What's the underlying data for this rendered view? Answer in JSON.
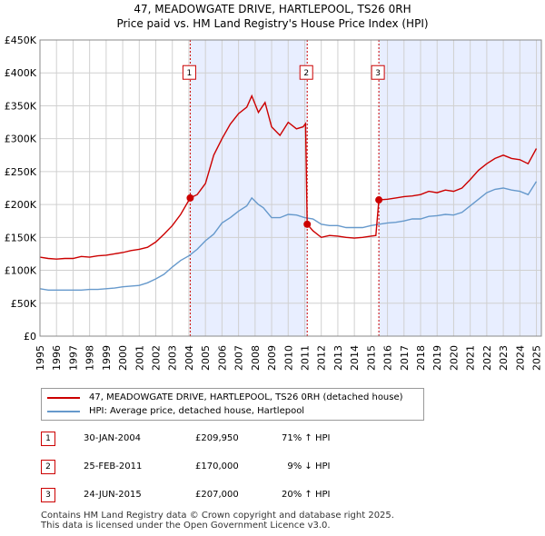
{
  "title_line1": "47, MEADOWGATE DRIVE, HARTLEPOOL, TS26 0RH",
  "title_line2": "Price paid vs. HM Land Registry's House Price Index (HPI)",
  "chart_data": {
    "type": "line",
    "title": "47, MEADOWGATE DRIVE, HARTLEPOOL, TS26 0RH — Price paid vs. HM Land Registry's House Price Index (HPI)",
    "xlim": [
      1995,
      2025.3
    ],
    "ylim": [
      0,
      450000
    ],
    "x_ticks": [
      1995,
      1996,
      1997,
      1998,
      1999,
      2000,
      2001,
      2002,
      2003,
      2004,
      2005,
      2006,
      2007,
      2008,
      2009,
      2010,
      2011,
      2012,
      2013,
      2014,
      2015,
      2016,
      2017,
      2018,
      2019,
      2020,
      2021,
      2022,
      2023,
      2024,
      2025
    ],
    "y_ticks": [
      0,
      50000,
      100000,
      150000,
      200000,
      250000,
      300000,
      350000,
      400000,
      450000
    ],
    "y_tick_labels": [
      "£0",
      "£50K",
      "£100K",
      "£150K",
      "£200K",
      "£250K",
      "£300K",
      "£350K",
      "£400K",
      "£450K"
    ],
    "colors": {
      "property": "#cc0000",
      "hpi": "#6699cc",
      "shade": "#e8eeff",
      "grid": "#d0d0d0"
    },
    "shaded_ranges": [
      [
        2004.08,
        2011.15
      ],
      [
        2015.48,
        2025.3
      ]
    ],
    "series": [
      {
        "name": "47, MEADOWGATE DRIVE, HARTLEPOOL, TS26 0RH (detached house)",
        "color": "#cc0000",
        "points": [
          [
            1995.0,
            120000
          ],
          [
            1995.5,
            118000
          ],
          [
            1996.0,
            117000
          ],
          [
            1996.5,
            118000
          ],
          [
            1997.0,
            118000
          ],
          [
            1997.5,
            121000
          ],
          [
            1998.0,
            120000
          ],
          [
            1998.5,
            122000
          ],
          [
            1999.0,
            123000
          ],
          [
            1999.5,
            125000
          ],
          [
            2000.0,
            127000
          ],
          [
            2000.5,
            130000
          ],
          [
            2001.0,
            132000
          ],
          [
            2001.5,
            135000
          ],
          [
            2002.0,
            143000
          ],
          [
            2002.5,
            155000
          ],
          [
            2003.0,
            168000
          ],
          [
            2003.5,
            185000
          ],
          [
            2004.08,
            209950
          ],
          [
            2004.5,
            215000
          ],
          [
            2005.0,
            232000
          ],
          [
            2005.5,
            275000
          ],
          [
            2006.0,
            300000
          ],
          [
            2006.5,
            322000
          ],
          [
            2007.0,
            338000
          ],
          [
            2007.5,
            348000
          ],
          [
            2007.8,
            365000
          ],
          [
            2008.2,
            340000
          ],
          [
            2008.6,
            355000
          ],
          [
            2009.0,
            318000
          ],
          [
            2009.5,
            305000
          ],
          [
            2010.0,
            325000
          ],
          [
            2010.5,
            315000
          ],
          [
            2010.9,
            318000
          ],
          [
            2011.05,
            323000
          ],
          [
            2011.15,
            170000
          ],
          [
            2011.5,
            160000
          ],
          [
            2012.0,
            150000
          ],
          [
            2012.5,
            153000
          ],
          [
            2013.0,
            152000
          ],
          [
            2013.5,
            150000
          ],
          [
            2014.0,
            149000
          ],
          [
            2014.5,
            150000
          ],
          [
            2015.0,
            152000
          ],
          [
            2015.3,
            153000
          ],
          [
            2015.48,
            207000
          ],
          [
            2016.0,
            208000
          ],
          [
            2016.5,
            210000
          ],
          [
            2017.0,
            212000
          ],
          [
            2017.5,
            213000
          ],
          [
            2018.0,
            215000
          ],
          [
            2018.5,
            220000
          ],
          [
            2019.0,
            218000
          ],
          [
            2019.5,
            222000
          ],
          [
            2020.0,
            220000
          ],
          [
            2020.5,
            225000
          ],
          [
            2021.0,
            238000
          ],
          [
            2021.5,
            252000
          ],
          [
            2022.0,
            262000
          ],
          [
            2022.5,
            270000
          ],
          [
            2023.0,
            275000
          ],
          [
            2023.5,
            270000
          ],
          [
            2024.0,
            268000
          ],
          [
            2024.5,
            262000
          ],
          [
            2025.0,
            285000
          ]
        ]
      },
      {
        "name": "HPI: Average price, detached house, Hartlepool",
        "color": "#6699cc",
        "points": [
          [
            1995.0,
            72000
          ],
          [
            1995.5,
            70000
          ],
          [
            1996.0,
            70000
          ],
          [
            1996.5,
            70000
          ],
          [
            1997.0,
            70000
          ],
          [
            1997.5,
            70000
          ],
          [
            1998.0,
            71000
          ],
          [
            1998.5,
            71000
          ],
          [
            1999.0,
            72000
          ],
          [
            1999.5,
            73000
          ],
          [
            2000.0,
            75000
          ],
          [
            2000.5,
            76000
          ],
          [
            2001.0,
            77000
          ],
          [
            2001.5,
            81000
          ],
          [
            2002.0,
            87000
          ],
          [
            2002.5,
            94000
          ],
          [
            2003.0,
            105000
          ],
          [
            2003.5,
            115000
          ],
          [
            2004.0,
            122000
          ],
          [
            2004.5,
            132000
          ],
          [
            2005.0,
            145000
          ],
          [
            2005.5,
            155000
          ],
          [
            2006.0,
            172000
          ],
          [
            2006.5,
            180000
          ],
          [
            2007.0,
            190000
          ],
          [
            2007.5,
            198000
          ],
          [
            2007.8,
            210000
          ],
          [
            2008.2,
            200000
          ],
          [
            2008.5,
            195000
          ],
          [
            2009.0,
            180000
          ],
          [
            2009.5,
            180000
          ],
          [
            2010.0,
            185000
          ],
          [
            2010.5,
            184000
          ],
          [
            2011.0,
            180000
          ],
          [
            2011.5,
            178000
          ],
          [
            2012.0,
            170000
          ],
          [
            2012.5,
            168000
          ],
          [
            2013.0,
            168000
          ],
          [
            2013.5,
            165000
          ],
          [
            2014.0,
            165000
          ],
          [
            2014.5,
            165000
          ],
          [
            2015.0,
            168000
          ],
          [
            2015.5,
            170000
          ],
          [
            2016.0,
            172000
          ],
          [
            2016.5,
            173000
          ],
          [
            2017.0,
            175000
          ],
          [
            2017.5,
            178000
          ],
          [
            2018.0,
            178000
          ],
          [
            2018.5,
            182000
          ],
          [
            2019.0,
            183000
          ],
          [
            2019.5,
            185000
          ],
          [
            2020.0,
            184000
          ],
          [
            2020.5,
            188000
          ],
          [
            2021.0,
            198000
          ],
          [
            2021.5,
            208000
          ],
          [
            2022.0,
            218000
          ],
          [
            2022.5,
            223000
          ],
          [
            2023.0,
            225000
          ],
          [
            2023.5,
            222000
          ],
          [
            2024.0,
            220000
          ],
          [
            2024.5,
            215000
          ],
          [
            2025.0,
            235000
          ]
        ]
      }
    ],
    "sales": [
      {
        "marker": "1",
        "x": 2004.08,
        "price": 209950
      },
      {
        "marker": "2",
        "x": 2011.15,
        "price": 170000
      },
      {
        "marker": "3",
        "x": 2015.48,
        "price": 207000
      }
    ]
  },
  "legend": {
    "property_label": "47, MEADOWGATE DRIVE, HARTLEPOOL, TS26 0RH (detached house)",
    "hpi_label": "HPI: Average price, detached house, Hartlepool"
  },
  "sales_table": [
    {
      "num": "1",
      "date": "30-JAN-2004",
      "price": "£209,950",
      "hpi": "71% ↑ HPI"
    },
    {
      "num": "2",
      "date": "25-FEB-2011",
      "price": "£170,000",
      "hpi": "  9% ↓ HPI"
    },
    {
      "num": "3",
      "date": "24-JUN-2015",
      "price": "£207,000",
      "hpi": "20% ↑ HPI"
    }
  ],
  "footer": {
    "line1": "Contains HM Land Registry data © Crown copyright and database right 2025.",
    "line2": "This data is licensed under the Open Government Licence v3.0."
  }
}
